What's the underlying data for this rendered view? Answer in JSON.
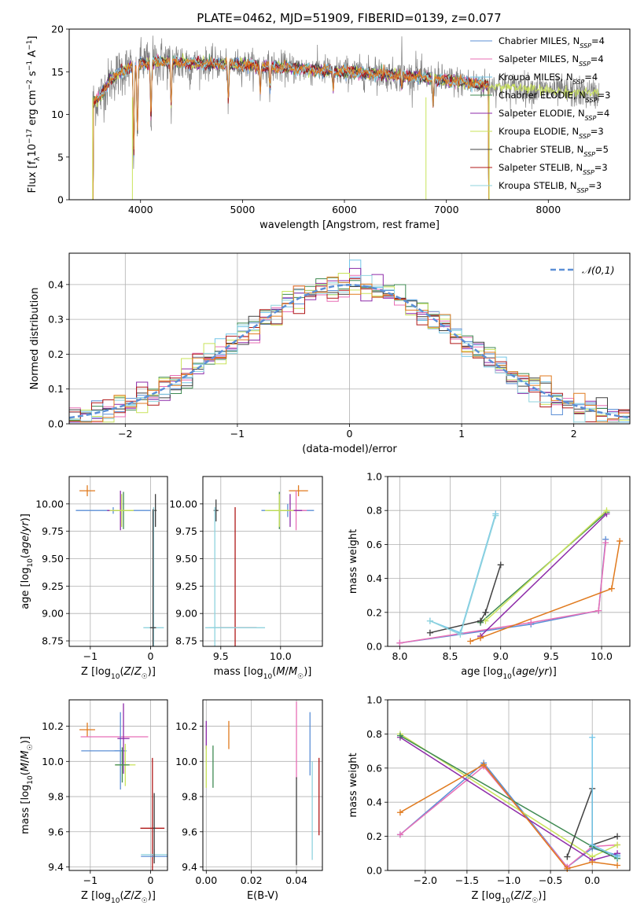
{
  "figure": {
    "title": "PLATE=0462, MJD=51909, FIBERID=0139, z=0.077"
  },
  "colors": {
    "chabrier_miles": "#5b8fd6",
    "salpeter_miles": "#e86fb6",
    "kroupa_miles": "#73c6e8",
    "chabrier_elodie": "#3f8a52",
    "salpeter_elodie": "#8d2aa8",
    "kroupa_elodie": "#c9e35a",
    "chabrier_stelib": "#404040",
    "salpeter_stelib": "#b01818",
    "kroupa_stelib": "#8fd3de",
    "orange": "#e07a1e",
    "data": "#808080",
    "grid": "#b0b0b0"
  },
  "chart_data": [
    {
      "id": "spectrum",
      "type": "line",
      "xlabel": "wavelength [Angstrom, rest frame]",
      "ylabel": "Flux [f_λ 10^-17 erg cm^-2 s^-1 A^-1]",
      "xlim": [
        3300,
        8800
      ],
      "ylim": [
        0,
        20
      ],
      "xticks": [
        4000,
        5000,
        6000,
        7000,
        8000
      ],
      "yticks": [
        0,
        5,
        10,
        15,
        20
      ],
      "grid": false,
      "legend_position": "top-right",
      "legend": [
        {
          "name": "Chabrier MILES",
          "nssp": "4",
          "color_key": "chabrier_miles"
        },
        {
          "name": "Salpeter MILES",
          "nssp": "4",
          "color_key": "salpeter_miles"
        },
        {
          "name": "Kroupa MILES",
          "nssp": "4",
          "color_key": "kroupa_miles"
        },
        {
          "name": "Chabrier ELODIE",
          "nssp": "3",
          "color_key": "chabrier_elodie"
        },
        {
          "name": "Salpeter ELODIE",
          "nssp": "4",
          "color_key": "salpeter_elodie"
        },
        {
          "name": "Kroupa ELODIE",
          "nssp": "3",
          "color_key": "kroupa_elodie"
        },
        {
          "name": "Chabrier STELIB",
          "nssp": "5",
          "color_key": "chabrier_stelib"
        },
        {
          "name": "Salpeter STELIB",
          "nssp": "3",
          "color_key": "salpeter_stelib"
        },
        {
          "name": "Kroupa STELIB",
          "nssp": "3",
          "color_key": "kroupa_stelib"
        }
      ],
      "continuum": [
        [
          3500,
          11
        ],
        [
          3600,
          12
        ],
        [
          3700,
          14
        ],
        [
          3800,
          15
        ],
        [
          3900,
          15.5
        ],
        [
          4000,
          16
        ],
        [
          4200,
          16.2
        ],
        [
          4500,
          16
        ],
        [
          5000,
          15.8
        ],
        [
          5500,
          15.4
        ],
        [
          6000,
          15
        ],
        [
          6500,
          14.6
        ],
        [
          7000,
          14
        ],
        [
          7400,
          13.4
        ],
        [
          7800,
          13
        ],
        [
          8200,
          12.6
        ],
        [
          8500,
          12.4
        ]
      ],
      "model_range": [
        3530,
        7420
      ],
      "data_range": [
        3530,
        8500
      ],
      "absorption_features": [
        [
          3934,
          4.5
        ],
        [
          3969,
          7
        ],
        [
          4102,
          9
        ],
        [
          4300,
          10.5
        ],
        [
          4861,
          11.2
        ],
        [
          5175,
          12.4
        ],
        [
          5270,
          13
        ],
        [
          5890,
          12.8
        ],
        [
          6563,
          13
        ],
        [
          6870,
          11
        ]
      ],
      "emission_features": [
        [
          6563,
          20
        ],
        [
          6300,
          17
        ],
        [
          6700,
          17.5
        ]
      ],
      "model_spikes": [
        [
          3530,
          0
        ],
        [
          3920,
          0
        ],
        [
          6800,
          0
        ],
        [
          7420,
          0
        ]
      ]
    },
    {
      "id": "residuals",
      "type": "line",
      "xlabel": "(data-model)/error",
      "ylabel": "Normed distribution",
      "xlim": [
        -2.5,
        2.5
      ],
      "ylim": [
        0,
        0.49
      ],
      "xticks": [
        -2,
        -1,
        0,
        1,
        2
      ],
      "yticks": [
        0.0,
        0.1,
        0.2,
        0.3,
        0.4
      ],
      "grid": true,
      "legend_position": "top-right",
      "legend": [
        {
          "name": "𝒩(0,1)",
          "style": "dashed",
          "color_key": "chabrier_miles"
        }
      ],
      "bin_width": 0.1
    },
    {
      "id": "age_vs_z",
      "type": "scatter",
      "xlabel": "Z [log10(Z/Z☉)]",
      "ylabel": "age  [log10(age/yr)]",
      "xlim": [
        -1.35,
        0.28
      ],
      "ylim": [
        8.7,
        10.25
      ],
      "xticks": [
        -1,
        0
      ],
      "yticks": [
        8.75,
        9.0,
        9.25,
        9.5,
        9.75,
        10.0
      ],
      "grid": true,
      "points": [
        {
          "x": -1.05,
          "y": 10.12,
          "xerr": 0.13,
          "yerr": 0.05,
          "color_key": "orange"
        },
        {
          "x": -0.62,
          "y": 9.94,
          "xerr": 0.62,
          "yerr": 0.03,
          "color_key": "chabrier_miles"
        },
        {
          "x": -0.5,
          "y": 9.94,
          "xerr": 0.22,
          "yerr": 0.18,
          "color_key": "salpeter_elodie"
        },
        {
          "x": -0.45,
          "y": 9.94,
          "xerr": 0.15,
          "yerr": 0.17,
          "color_key": "chabrier_elodie"
        },
        {
          "x": -0.48,
          "y": 9.94,
          "xerr": 0.2,
          "yerr": 0.15,
          "color_key": "kroupa_elodie"
        },
        {
          "x": 0.08,
          "y": 9.94,
          "xerr": 0.02,
          "yerr": 0.15,
          "color_key": "chabrier_stelib"
        },
        {
          "x": 0.05,
          "y": 8.87,
          "xerr": 0.17,
          "yerr": 1.1,
          "color_key": "kroupa_stelib"
        },
        {
          "x": 0.04,
          "y": 8.87,
          "xerr": 0.05,
          "yerr": 1.08,
          "color_key": "chabrier_stelib"
        }
      ]
    },
    {
      "id": "age_vs_mass",
      "type": "scatter",
      "xlabel": "mass [log10(M/M☉)]",
      "ylabel": "",
      "xlim": [
        9.35,
        10.35
      ],
      "ylim": [
        8.7,
        10.25
      ],
      "xticks": [
        9.5,
        10.0
      ],
      "yticks": [
        8.75,
        9.0,
        9.25,
        9.5,
        9.75,
        10.0
      ],
      "grid": true,
      "points": [
        {
          "x": 10.15,
          "y": 10.12,
          "xerr": 0.08,
          "yerr": 0.05,
          "color_key": "orange"
        },
        {
          "x": 10.06,
          "y": 9.94,
          "xerr": 0.22,
          "yerr": 0.06,
          "color_key": "chabrier_miles"
        },
        {
          "x": 10.13,
          "y": 9.94,
          "xerr": 0.09,
          "yerr": 0.18,
          "color_key": "salpeter_miles"
        },
        {
          "x": 10.08,
          "y": 9.94,
          "xerr": 0.1,
          "yerr": 0.15,
          "color_key": "salpeter_elodie"
        },
        {
          "x": 9.99,
          "y": 9.94,
          "xerr": 0.1,
          "yerr": 0.17,
          "color_key": "chabrier_elodie"
        },
        {
          "x": 9.99,
          "y": 9.94,
          "xerr": 0.12,
          "yerr": 0.15,
          "color_key": "kroupa_elodie"
        },
        {
          "x": 9.46,
          "y": 9.94,
          "xerr": 0.02,
          "yerr": 0.1,
          "color_key": "chabrier_stelib"
        },
        {
          "x": 9.62,
          "y": 8.87,
          "xerr": 0.18,
          "yerr": 1.1,
          "color_key": "salpeter_stelib"
        },
        {
          "x": 9.45,
          "y": 8.87,
          "xerr": 0.05,
          "yerr": 1.1,
          "color_key": "kroupa_stelib"
        },
        {
          "x": 9.62,
          "y": 8.87,
          "xerr": 0.25,
          "yerr": 0.0,
          "color_key": "kroupa_stelib"
        }
      ]
    },
    {
      "id": "massweight_vs_age",
      "type": "line",
      "xlabel": "age  [log10(age/yr)]",
      "ylabel": "mass weight",
      "xlim": [
        7.88,
        10.28
      ],
      "ylim": [
        0,
        1.0
      ],
      "xticks": [
        8.0,
        8.5,
        9.0,
        9.5,
        10.0
      ],
      "yticks": [
        0.0,
        0.2,
        0.4,
        0.6,
        0.8,
        1.0
      ],
      "grid": true,
      "series": [
        {
          "color_key": "chabrier_miles",
          "x": [
            8.0,
            9.3,
            9.97,
            10.04
          ],
          "y": [
            0.02,
            0.13,
            0.21,
            0.63
          ]
        },
        {
          "color_key": "salpeter_miles",
          "x": [
            8.0,
            9.3,
            9.97,
            10.04
          ],
          "y": [
            0.02,
            0.14,
            0.21,
            0.61
          ]
        },
        {
          "color_key": "kroupa_miles",
          "x": [
            8.3,
            8.6,
            8.95
          ],
          "y": [
            0.15,
            0.08,
            0.78
          ]
        },
        {
          "color_key": "chabrier_elodie",
          "x": [
            8.8,
            10.05
          ],
          "y": [
            0.14,
            0.79
          ]
        },
        {
          "color_key": "salpeter_elodie",
          "x": [
            8.8,
            10.05
          ],
          "y": [
            0.06,
            0.78
          ]
        },
        {
          "color_key": "kroupa_elodie",
          "x": [
            8.85,
            10.05
          ],
          "y": [
            0.15,
            0.8
          ]
        },
        {
          "color_key": "chabrier_stelib",
          "x": [
            8.3,
            8.8,
            8.85,
            9.0
          ],
          "y": [
            0.08,
            0.15,
            0.2,
            0.48
          ]
        },
        {
          "color_key": "kroupa_stelib",
          "x": [
            8.3,
            8.6,
            8.95
          ],
          "y": [
            0.15,
            0.07,
            0.77
          ]
        },
        {
          "color_key": "orange",
          "x": [
            8.7,
            8.8,
            10.1,
            10.18
          ],
          "y": [
            0.03,
            0.05,
            0.34,
            0.62
          ]
        }
      ]
    },
    {
      "id": "mass_vs_z",
      "type": "scatter",
      "xlabel": "Z [log10(Z/Z☉)]",
      "ylabel": "mass [log10(M/M☉)]",
      "xlim": [
        -1.35,
        0.28
      ],
      "ylim": [
        9.38,
        10.35
      ],
      "xticks": [
        -1,
        0
      ],
      "yticks": [
        9.4,
        9.6,
        9.8,
        10.0,
        10.2
      ],
      "grid": true,
      "points": [
        {
          "x": -1.05,
          "y": 10.18,
          "xerr": 0.13,
          "yerr": 0.04,
          "color_key": "orange"
        },
        {
          "x": -0.6,
          "y": 10.14,
          "xerr": 0.56,
          "yerr": 0.0,
          "color_key": "salpeter_miles"
        },
        {
          "x": -0.8,
          "y": 10.06,
          "xerr": 0.35,
          "yerr": 0.0,
          "color_key": "chabrier_miles"
        },
        {
          "x": -0.5,
          "y": 10.06,
          "xerr": 0.1,
          "yerr": 0.22,
          "color_key": "chabrier_miles"
        },
        {
          "x": -0.45,
          "y": 10.13,
          "xerr": 0.1,
          "yerr": 0.2,
          "color_key": "salpeter_elodie"
        },
        {
          "x": -0.42,
          "y": 9.98,
          "xerr": 0.17,
          "yerr": 0.12,
          "color_key": "kroupa_elodie"
        },
        {
          "x": -0.47,
          "y": 9.98,
          "xerr": 0.12,
          "yerr": 0.1,
          "color_key": "chabrier_elodie"
        },
        {
          "x": 0.03,
          "y": 9.62,
          "xerr": 0.2,
          "yerr": 0.4,
          "color_key": "salpeter_stelib"
        },
        {
          "x": 0.06,
          "y": 9.47,
          "xerr": 0.22,
          "yerr": 0.03,
          "color_key": "kroupa_stelib"
        },
        {
          "x": 0.06,
          "y": 9.46,
          "xerr": 0.22,
          "yerr": 0.0,
          "color_key": "chabrier_miles"
        },
        {
          "x": 0.06,
          "y": 9.62,
          "xerr": 0.02,
          "yerr": 0.2,
          "color_key": "chabrier_stelib"
        }
      ]
    },
    {
      "id": "mass_vs_ebv",
      "type": "scatter",
      "xlabel": "E(B-V)",
      "ylabel": "",
      "xlim": [
        -0.0015,
        0.0515
      ],
      "ylim": [
        9.38,
        10.35
      ],
      "xticks": [
        0.0,
        0.02,
        0.04
      ],
      "yticks": [
        9.4,
        9.6,
        9.8,
        10.0,
        10.2
      ],
      "grid": true,
      "points": [
        {
          "x": 0.0,
          "y": 10.15,
          "xerr": 0,
          "yerr": 0.08,
          "color_key": "salpeter_elodie"
        },
        {
          "x": 0.0,
          "y": 9.97,
          "xerr": 0,
          "yerr": 0.12,
          "color_key": "kroupa_elodie"
        },
        {
          "x": 0.003,
          "y": 9.97,
          "xerr": 0,
          "yerr": 0.12,
          "color_key": "chabrier_elodie"
        },
        {
          "x": 0.01,
          "y": 10.15,
          "xerr": 0,
          "yerr": 0.08,
          "color_key": "orange"
        },
        {
          "x": 0.04,
          "y": 10.12,
          "xerr": 0,
          "yerr": 0.22,
          "color_key": "salpeter_miles"
        },
        {
          "x": 0.04,
          "y": 9.66,
          "xerr": 0,
          "yerr": 0.25,
          "color_key": "chabrier_stelib"
        },
        {
          "x": 0.046,
          "y": 10.1,
          "xerr": 0,
          "yerr": 0.18,
          "color_key": "chabrier_miles"
        },
        {
          "x": 0.047,
          "y": 9.72,
          "xerr": 0,
          "yerr": 0.28,
          "color_key": "kroupa_stelib"
        },
        {
          "x": 0.05,
          "y": 9.8,
          "xerr": 0,
          "yerr": 0.22,
          "color_key": "salpeter_stelib"
        }
      ]
    },
    {
      "id": "massweight_vs_z",
      "type": "line",
      "xlabel": "Z [log10(Z/Z☉)]",
      "ylabel": "mass weight",
      "xlim": [
        -2.45,
        0.45
      ],
      "ylim": [
        0,
        1.0
      ],
      "xticks": [
        -2.0,
        -1.5,
        -1.0,
        -0.5,
        0.0
      ],
      "yticks": [
        0.0,
        0.2,
        0.4,
        0.6,
        0.8,
        1.0
      ],
      "grid": true,
      "series": [
        {
          "color_key": "chabrier_miles",
          "x": [
            -2.3,
            -1.3,
            -0.3,
            0.0,
            0.3
          ],
          "y": [
            0.21,
            0.63,
            0.02,
            0.13,
            0.09
          ]
        },
        {
          "color_key": "salpeter_miles",
          "x": [
            -2.3,
            -1.3,
            -0.3,
            0.0,
            0.3
          ],
          "y": [
            0.21,
            0.61,
            0.02,
            0.14,
            0.15
          ]
        },
        {
          "color_key": "kroupa_elodie",
          "x": [
            -2.3,
            0.0,
            0.3
          ],
          "y": [
            0.8,
            0.08,
            0.15
          ]
        },
        {
          "color_key": "salpeter_elodie",
          "x": [
            -2.3,
            0.0,
            0.3
          ],
          "y": [
            0.78,
            0.06,
            0.1
          ]
        },
        {
          "color_key": "chabrier_elodie",
          "x": [
            -2.3,
            0.0,
            0.3
          ],
          "y": [
            0.79,
            0.14,
            0.07
          ]
        },
        {
          "color_key": "chabrier_stelib",
          "x": [
            -0.3,
            0.0,
            0.0,
            0.3
          ],
          "y": [
            0.08,
            0.48,
            0.15,
            0.2
          ]
        },
        {
          "color_key": "kroupa_miles",
          "x": [
            0.0,
            0.0,
            0.3
          ],
          "y": [
            0.78,
            0.15,
            0.08
          ]
        },
        {
          "color_key": "orange",
          "x": [
            -2.3,
            -1.3,
            -0.3,
            0.0,
            0.3
          ],
          "y": [
            0.34,
            0.62,
            0.01,
            0.05,
            0.03
          ]
        }
      ]
    }
  ]
}
